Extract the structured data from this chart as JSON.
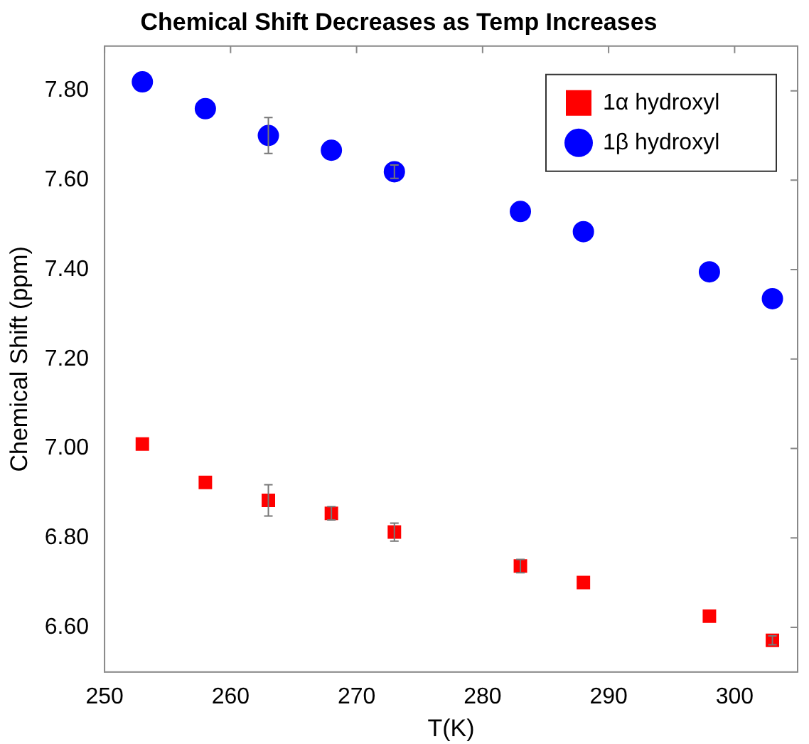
{
  "chart_data": {
    "type": "scatter",
    "title": "Chemical Shift Decreases as Temp Increases",
    "xlabel": "T(K)",
    "ylabel": "Chemical Shift (ppm)",
    "x": [
      253,
      258,
      263,
      268,
      273,
      283,
      288,
      298,
      303
    ],
    "series": [
      {
        "name": "1α hydroxyl",
        "color": "#ff0000",
        "marker": "square",
        "values": [
          7.01,
          6.924,
          6.884,
          6.855,
          6.813,
          6.737,
          6.7,
          6.625,
          6.571
        ],
        "errors": [
          null,
          null,
          0.035,
          0.015,
          0.02,
          0.015,
          null,
          null,
          0.01
        ]
      },
      {
        "name": "1β hydroxyl",
        "color": "#0000ff",
        "marker": "circle",
        "values": [
          7.82,
          7.76,
          7.7,
          7.667,
          7.619,
          7.53,
          7.485,
          7.395,
          7.335
        ],
        "errors": [
          null,
          null,
          0.04,
          null,
          0.015,
          null,
          null,
          null,
          null
        ]
      }
    ],
    "xlim": [
      250,
      305
    ],
    "xticks": [
      250,
      260,
      270,
      280,
      290,
      300
    ],
    "ylim": [
      6.5,
      7.9
    ],
    "yticks": [
      {
        "value": 6.6,
        "label": "6.60"
      },
      {
        "value": 6.8,
        "label": "6.80"
      },
      {
        "value": 7.0,
        "label": "7.00"
      },
      {
        "value": 7.2,
        "label": "7.20"
      },
      {
        "value": 7.4,
        "label": "7.40"
      },
      {
        "value": 7.6,
        "label": "7.60"
      },
      {
        "value": 7.8,
        "label": "7.80"
      }
    ],
    "grid": false,
    "legend": "top right"
  }
}
